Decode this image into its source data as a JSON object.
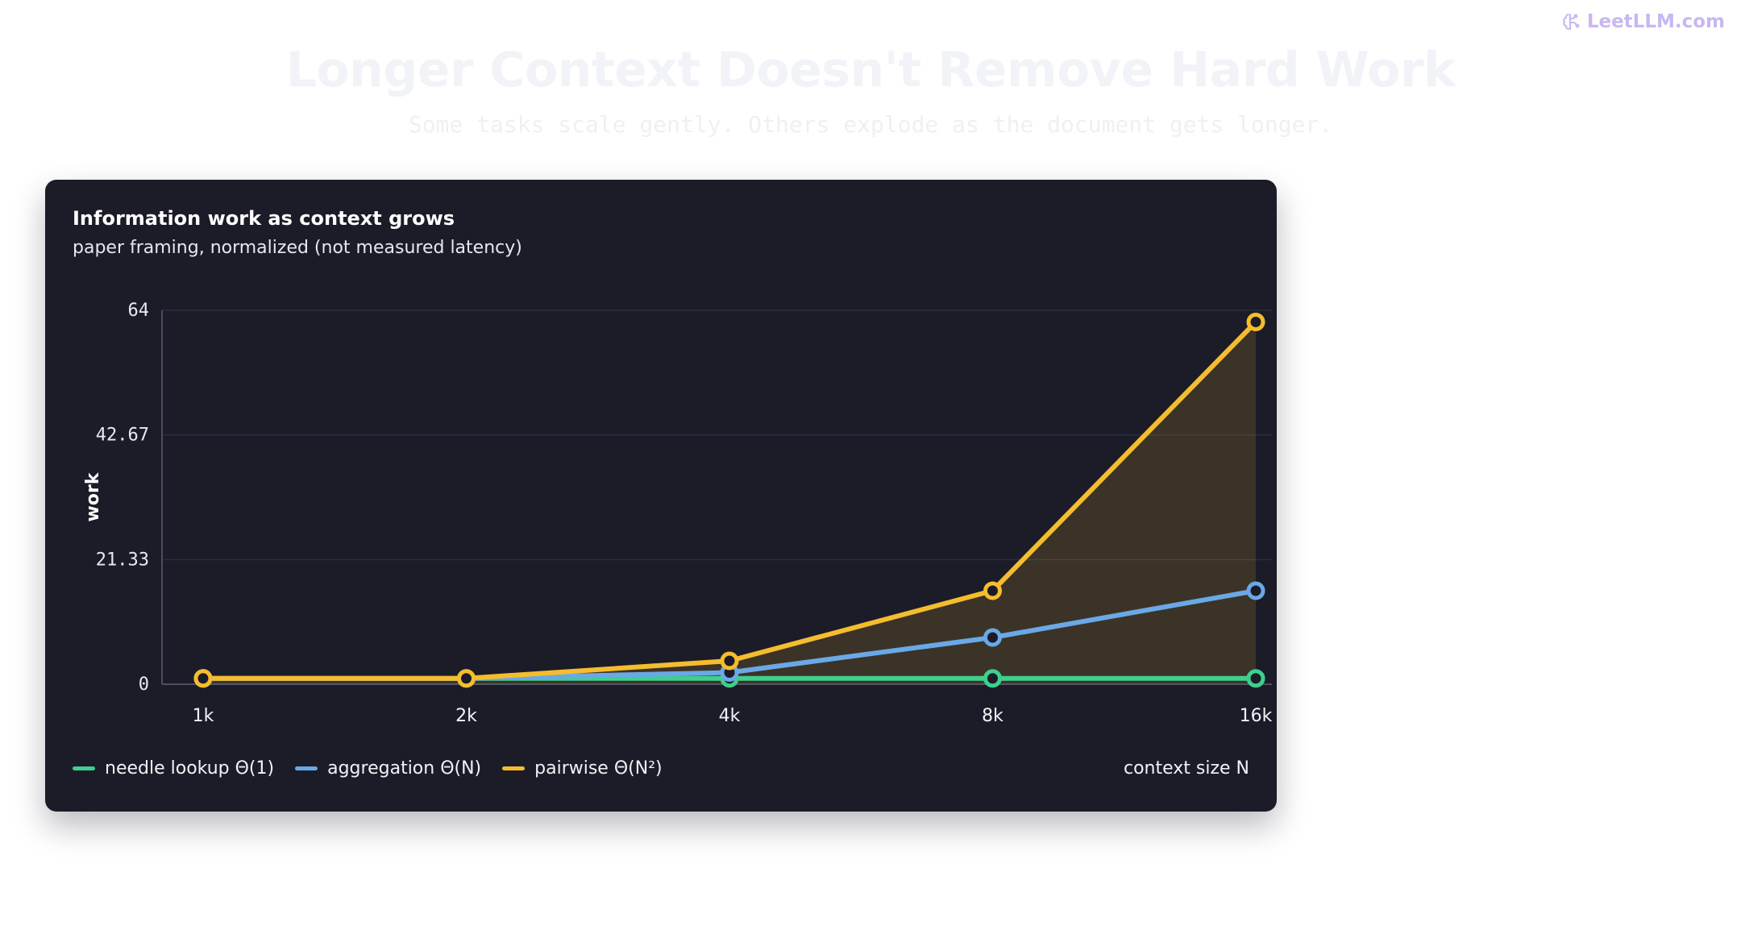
{
  "brand": {
    "name": "LeetLLM.com",
    "icon": "brain-icon",
    "color": "#c9b6f2"
  },
  "page": {
    "title": "Longer Context Doesn't Remove Hard Work",
    "subtitle": "Some tasks scale gently. Others explode as the document gets longer."
  },
  "card": {
    "title": "Information work as context grows",
    "subtitle": "paper framing, normalized (not measured latency)",
    "background": "#1b1c27"
  },
  "chart_data": {
    "type": "line",
    "title": "Information work as context grows",
    "subtitle": "paper framing, normalized (not measured latency)",
    "xlabel": "context size N",
    "ylabel": "work",
    "categories": [
      "1k",
      "2k",
      "4k",
      "8k",
      "16k"
    ],
    "ylim": [
      0,
      64
    ],
    "yticks": [
      "0",
      "21.33",
      "42.67",
      "64"
    ],
    "grid": true,
    "legend_position": "bottom-left",
    "series": [
      {
        "name": "needle lookup Θ(1)",
        "color": "#3ecf8e",
        "values": [
          1,
          1,
          1,
          1,
          1
        ]
      },
      {
        "name": "aggregation Θ(N)",
        "color": "#6aa8e6",
        "values": [
          1,
          1,
          2,
          8,
          16
        ]
      },
      {
        "name": "pairwise Θ(N²)",
        "color": "#f5bd2e",
        "values": [
          1,
          1,
          4,
          16,
          62
        ],
        "fill_area": true
      }
    ]
  }
}
